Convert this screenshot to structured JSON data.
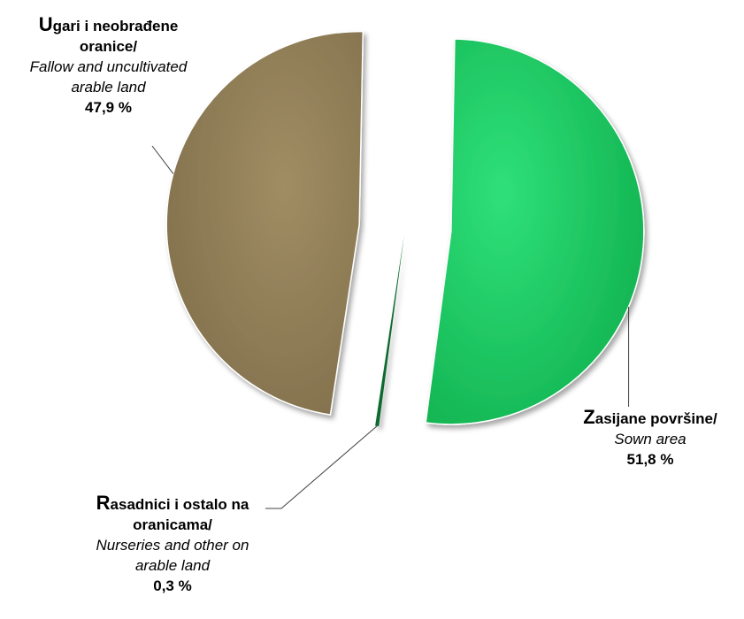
{
  "chart_data": {
    "type": "pie",
    "slices": [
      {
        "key": "sown",
        "initial": "Z",
        "label_rest": "asijane površine/",
        "label_en": "Sown area",
        "value_label": "51,8 %",
        "value": 51.8,
        "color": "#14c057"
      },
      {
        "key": "nurseries",
        "initial": "R",
        "label_rest": "asadnici i ostalo na",
        "label_rest2": "oranicama/",
        "label_en": "Nurseries and other on",
        "label_en2": "arable land",
        "value_label": "0,3 %",
        "value": 0.3,
        "color": "#0f6b2e"
      },
      {
        "key": "fallow",
        "initial": "U",
        "label_rest": "gari i neobrađene",
        "label_rest2": "oranice/",
        "label_en": "Fallow and uncultivated",
        "label_en2": "arable land",
        "value_label": "47,9 %",
        "value": 47.9,
        "color": "#8e7c56"
      }
    ]
  }
}
